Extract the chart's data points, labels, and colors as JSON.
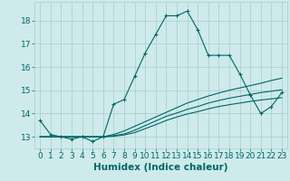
{
  "xlabel": "Humidex (Indice chaleur)",
  "bg_color": "#ceeaea",
  "line_color": "#006666",
  "grid_color": "#aacccc",
  "xlim": [
    -0.5,
    23.5
  ],
  "ylim": [
    12.5,
    18.8
  ],
  "yticks": [
    13,
    14,
    15,
    16,
    17,
    18
  ],
  "xticks": [
    0,
    1,
    2,
    3,
    4,
    5,
    6,
    7,
    8,
    9,
    10,
    11,
    12,
    13,
    14,
    15,
    16,
    17,
    18,
    19,
    20,
    21,
    22,
    23
  ],
  "series": [
    {
      "x": [
        0,
        1,
        2,
        3,
        4,
        5,
        6,
        7,
        8,
        9,
        10,
        11,
        12,
        13,
        14,
        15,
        16,
        17,
        18,
        19,
        20,
        21,
        22,
        23
      ],
      "y": [
        13.7,
        13.1,
        13.0,
        12.9,
        13.0,
        12.8,
        13.0,
        14.4,
        14.6,
        15.6,
        16.6,
        17.4,
        18.2,
        18.2,
        18.4,
        17.6,
        16.5,
        16.5,
        16.5,
        15.7,
        14.8,
        14.0,
        14.3,
        14.9
      ],
      "marker": "+"
    },
    {
      "x": [
        0,
        1,
        2,
        3,
        4,
        5,
        6,
        7,
        8,
        9,
        10,
        11,
        12,
        13,
        14,
        15,
        16,
        17,
        18,
        19,
        20,
        21,
        22,
        23
      ],
      "y": [
        13.0,
        13.0,
        13.0,
        13.0,
        13.0,
        13.0,
        13.0,
        13.1,
        13.25,
        13.45,
        13.65,
        13.85,
        14.05,
        14.25,
        14.45,
        14.6,
        14.75,
        14.88,
        15.0,
        15.1,
        15.2,
        15.3,
        15.42,
        15.52
      ],
      "marker": null
    },
    {
      "x": [
        0,
        1,
        2,
        3,
        4,
        5,
        6,
        7,
        8,
        9,
        10,
        11,
        12,
        13,
        14,
        15,
        16,
        17,
        18,
        19,
        20,
        21,
        22,
        23
      ],
      "y": [
        13.0,
        13.0,
        13.0,
        13.0,
        13.0,
        13.0,
        13.0,
        13.05,
        13.12,
        13.28,
        13.48,
        13.68,
        13.88,
        14.02,
        14.18,
        14.3,
        14.45,
        14.56,
        14.66,
        14.74,
        14.82,
        14.9,
        14.96,
        15.02
      ],
      "marker": null
    },
    {
      "x": [
        0,
        1,
        2,
        3,
        4,
        5,
        6,
        7,
        8,
        9,
        10,
        11,
        12,
        13,
        14,
        15,
        16,
        17,
        18,
        19,
        20,
        21,
        22,
        23
      ],
      "y": [
        13.0,
        13.0,
        13.0,
        13.0,
        13.0,
        13.0,
        13.0,
        13.02,
        13.08,
        13.18,
        13.35,
        13.52,
        13.7,
        13.85,
        13.98,
        14.08,
        14.2,
        14.3,
        14.38,
        14.45,
        14.52,
        14.58,
        14.63,
        14.68
      ],
      "marker": null
    }
  ],
  "tick_fontsize": 6.5,
  "xlabel_fontsize": 7.5
}
